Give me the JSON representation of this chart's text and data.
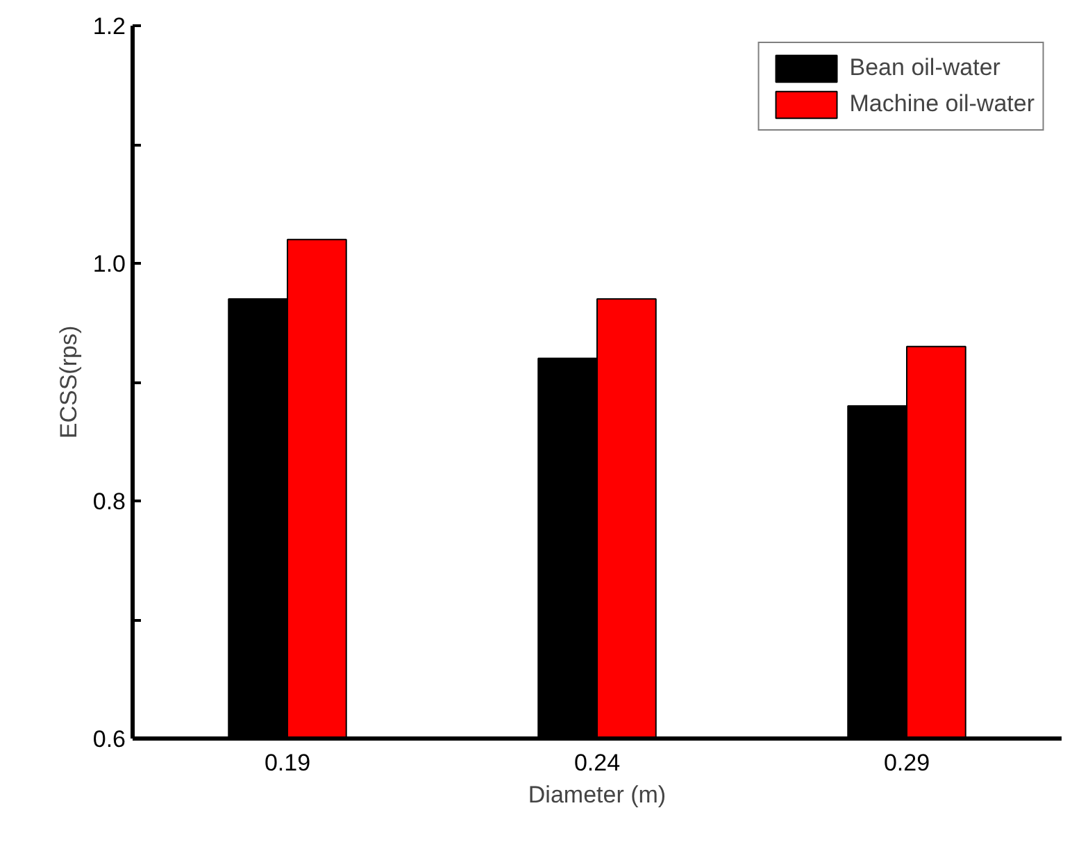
{
  "chart_data": {
    "type": "bar",
    "xlabel": "Diameter (m)",
    "ylabel": "ECSS(rps)",
    "categories": [
      "0.19",
      "0.24",
      "0.29"
    ],
    "series": [
      {
        "name": "Bean oil-water",
        "color": "#000000",
        "values": [
          0.97,
          0.92,
          0.88
        ]
      },
      {
        "name": "Machine oil-water",
        "color": "#ff0000",
        "values": [
          1.02,
          0.97,
          0.93
        ]
      }
    ],
    "ylim": [
      0.6,
      1.2
    ],
    "yticks": [
      {
        "value": 0.6,
        "label": "0.6"
      },
      {
        "value": 0.7,
        "label": null
      },
      {
        "value": 0.8,
        "label": "0.8"
      },
      {
        "value": 0.9,
        "label": null
      },
      {
        "value": 1.0,
        "label": "1.0"
      },
      {
        "value": 1.1,
        "label": null
      },
      {
        "value": 1.2,
        "label": "1.2"
      }
    ],
    "grid": false,
    "legend": "top right"
  }
}
